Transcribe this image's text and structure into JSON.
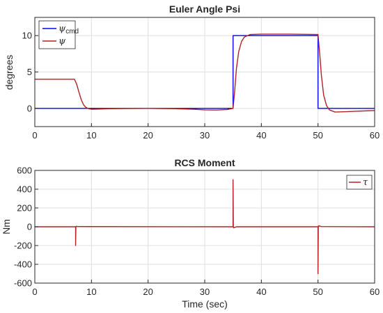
{
  "chart_data": [
    {
      "type": "line",
      "title": "Euler Angle Psi",
      "xlabel": "",
      "ylabel": "degrees",
      "xlim": [
        0,
        60
      ],
      "ylim": [
        -2.5,
        12.5
      ],
      "xticks": [
        0,
        10,
        20,
        30,
        40,
        50,
        60
      ],
      "yticks": [
        0,
        5,
        10
      ],
      "grid": true,
      "legend": "top-left",
      "series": [
        {
          "name": "ψ",
          "name_sub": "cmd",
          "color": "#0000ff",
          "x": [
            0,
            35,
            35,
            50,
            50,
            60
          ],
          "y": [
            0,
            0,
            10,
            10,
            0,
            0
          ]
        },
        {
          "name": "ψ",
          "color": "#b22222",
          "x": [
            0,
            7.0,
            7.4,
            7.8,
            8.2,
            8.6,
            9.0,
            9.5,
            10.0,
            11.0,
            13.0,
            16.0,
            20.0,
            25.0,
            28.0,
            30.0,
            32.0,
            34.0,
            35.0,
            35.3,
            35.6,
            36.0,
            36.5,
            37.0,
            38.0,
            40.0,
            45.0,
            50.0,
            50.3,
            50.6,
            51.0,
            51.5,
            52.0,
            53.0,
            55.0,
            58.0,
            60.0
          ],
          "y": [
            4,
            4,
            3.3,
            2.2,
            1.2,
            0.5,
            0.15,
            -0.05,
            -0.12,
            -0.1,
            -0.05,
            -0.02,
            0,
            -0.05,
            -0.12,
            -0.2,
            -0.22,
            -0.15,
            0,
            2.5,
            5.5,
            7.8,
            9.2,
            9.8,
            10.15,
            10.2,
            10.2,
            10.15,
            7.5,
            4.5,
            1.8,
            0.4,
            -0.2,
            -0.5,
            -0.45,
            -0.35,
            -0.3
          ]
        }
      ]
    },
    {
      "type": "line",
      "title": "RCS Moment",
      "xlabel": "Time (sec)",
      "ylabel": "Nm",
      "xlim": [
        0,
        60
      ],
      "ylim": [
        -600,
        600
      ],
      "xticks": [
        0,
        10,
        20,
        30,
        40,
        50,
        60
      ],
      "yticks": [
        -600,
        -400,
        -200,
        0,
        200,
        400,
        600
      ],
      "grid": true,
      "legend": "top-right",
      "series": [
        {
          "name": "τ",
          "color": "#b22222",
          "x": [
            0,
            7.2,
            7.2,
            7.25,
            7.3,
            7.6,
            35.0,
            35.0,
            35.05,
            35.1,
            35.6,
            50.0,
            50.0,
            50.05,
            50.1,
            50.6,
            60
          ],
          "y": [
            0,
            0,
            -200,
            0,
            5,
            2,
            0,
            500,
            0,
            -12,
            0,
            0,
            -500,
            0,
            10,
            2,
            0
          ]
        }
      ]
    }
  ]
}
